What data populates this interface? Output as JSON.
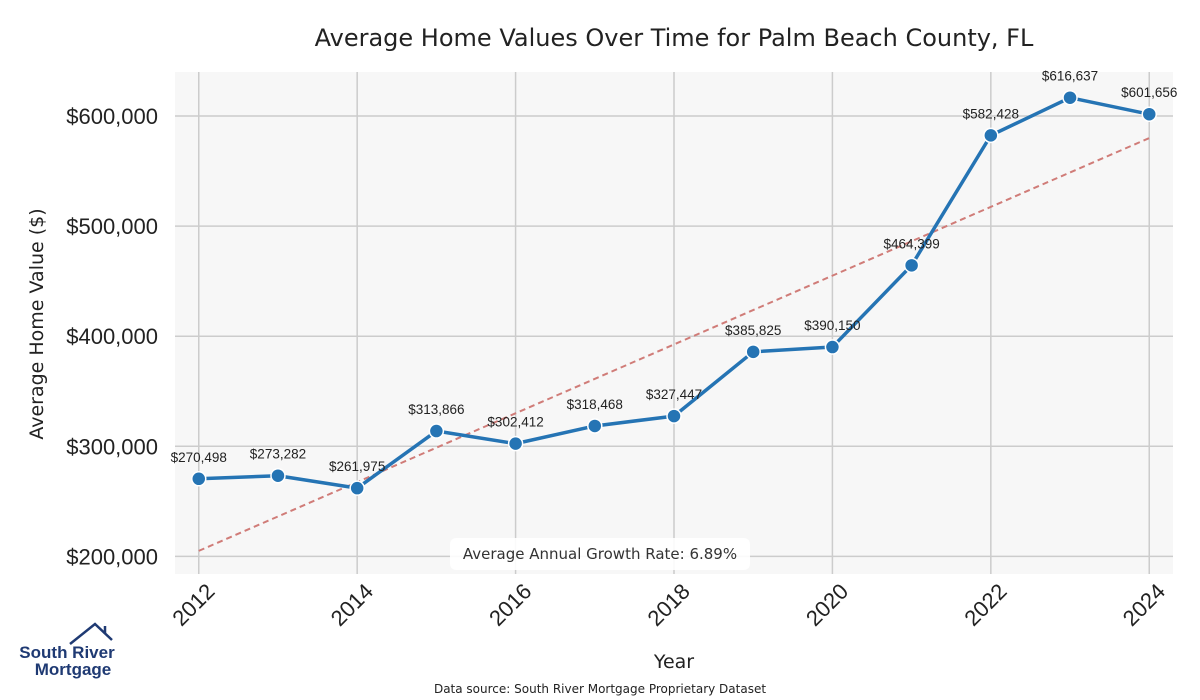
{
  "chart_data": {
    "type": "line",
    "title": "Average Home Values Over Time for Palm Beach County, FL",
    "xlabel": "Year",
    "ylabel": "Average Home Value ($)",
    "x": [
      2012,
      2013,
      2014,
      2015,
      2016,
      2017,
      2018,
      2019,
      2020,
      2021,
      2022,
      2023,
      2024
    ],
    "series": [
      {
        "values": [
          270498,
          273282,
          261975,
          313866,
          302412,
          318468,
          327447,
          385825,
          390150,
          464399,
          582428,
          616637,
          601656
        ],
        "labels": [
          "$270,498",
          "$273,282",
          "$261,975",
          "$313,866",
          "$302,412",
          "$318,468",
          "$327,447",
          "$385,825",
          "$390,150",
          "$464,399",
          "$582,428",
          "$616,637",
          "$601,656"
        ],
        "color": "#2574b4"
      }
    ],
    "trend_line": {
      "start": [
        2012,
        205000
      ],
      "end": [
        2024,
        580000
      ],
      "color": "#d07c78",
      "style": "dashed"
    },
    "xlim": [
      2011.7,
      2024.3
    ],
    "ylim": [
      184000,
      640000
    ],
    "xticks": [
      2012,
      2014,
      2016,
      2018,
      2020,
      2022,
      2024
    ],
    "xtick_labels": [
      "2012",
      "2014",
      "2016",
      "2018",
      "2020",
      "2022",
      "2024"
    ],
    "yticks": [
      200000,
      300000,
      400000,
      500000,
      600000
    ],
    "ytick_labels": [
      "$200,000",
      "$300,000",
      "$400,000",
      "$500,000",
      "$600,000"
    ],
    "grid": true,
    "annotation": "Average Annual Growth Rate: 6.89%",
    "source": "Data source: South River Mortgage Proprietary Dataset"
  },
  "logo": {
    "line1": "South River",
    "line2": "Mortgage",
    "color": "#1f3a73"
  },
  "colors": {
    "plot_bg": "#f7f7f7",
    "grid": "#cccccc",
    "line": "#2574b4",
    "trend": "#d07c78"
  }
}
